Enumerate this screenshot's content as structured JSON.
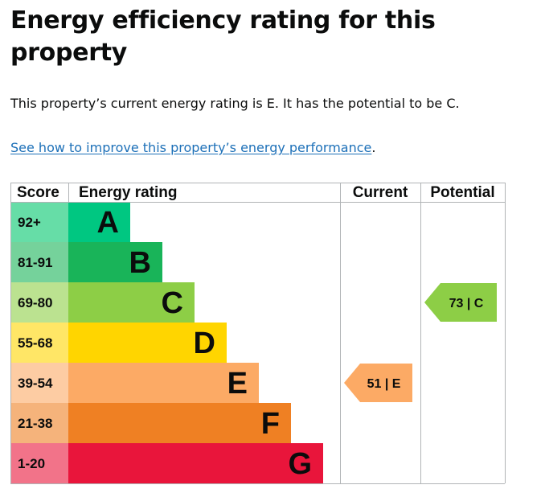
{
  "heading": "Energy efficiency rating for this property",
  "summary": "This property’s current energy rating is E. It has the potential to be C.",
  "link": {
    "text": "See how to improve this property’s energy performance",
    "suffix": "."
  },
  "chart_data": {
    "type": "bar",
    "columns": [
      "Score",
      "Energy rating",
      "Current",
      "Potential"
    ],
    "bands": [
      {
        "score": "92+",
        "rating": "A",
        "color": "#00c781",
        "score_bg": "#66dda7"
      },
      {
        "score": "81-91",
        "rating": "B",
        "color": "#19b459",
        "score_bg": "#75d29b"
      },
      {
        "score": "69-80",
        "rating": "C",
        "color": "#8dce46",
        "score_bg": "#bbe290"
      },
      {
        "score": "55-68",
        "rating": "D",
        "color": "#ffd500",
        "score_bg": "#ffe666"
      },
      {
        "score": "39-54",
        "rating": "E",
        "color": "#fcaa65",
        "score_bg": "#fdcca3"
      },
      {
        "score": "21-38",
        "rating": "F",
        "color": "#ef8023",
        "score_bg": "#f5b37b"
      },
      {
        "score": "1-20",
        "rating": "G",
        "color": "#e9153b",
        "score_bg": "#f27389"
      }
    ],
    "current": {
      "value": 51,
      "rating": "E",
      "label": "51 | E"
    },
    "potential": {
      "value": 73,
      "rating": "C",
      "label": "73 | C"
    }
  }
}
